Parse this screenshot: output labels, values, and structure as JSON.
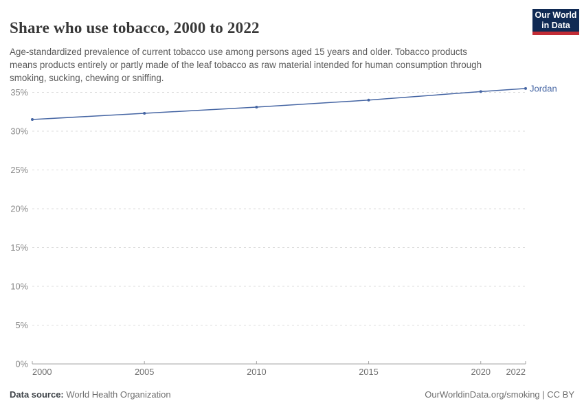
{
  "header": {
    "title": "Share who use tobacco, 2000 to 2022",
    "subtitle": "Age-standardized prevalence of current tobacco use among persons aged 15 years and older. Tobacco products means products entirely or partly made of the leaf tobacco as raw material intended for human consumption through smoking, sucking, chewing or sniffing.",
    "logo": {
      "line1": "Our World",
      "line2": "in Data",
      "bg_color": "#102a54",
      "accent_color": "#c22c35"
    }
  },
  "chart_data": {
    "type": "line",
    "title": "Share who use tobacco, 2000 to 2022",
    "x": [
      2000,
      2005,
      2010,
      2015,
      2020,
      2022
    ],
    "series": [
      {
        "name": "Jordan",
        "values": [
          31.5,
          32.3,
          33.1,
          34.0,
          35.1,
          35.5
        ],
        "color": "#4565a3"
      }
    ],
    "x_tick_labels": [
      "2000",
      "2005",
      "2010",
      "2015",
      "2020",
      "2022"
    ],
    "y_ticks": [
      0,
      5,
      10,
      15,
      20,
      25,
      30,
      35
    ],
    "y_tick_suffix": "%",
    "xlim": [
      2000,
      2022
    ],
    "ylim": [
      0,
      38.5
    ],
    "grid": "horizontal-dashed",
    "legend_position": "end-of-line",
    "entity_label": "Jordan"
  },
  "footer": {
    "datasource_label": "Data source:",
    "datasource_value": "World Health Organization",
    "license": "OurWorldinData.org/smoking | CC BY"
  },
  "colors": {
    "line": "#4565a3",
    "gridline": "#dcdcdc",
    "axis": "#a3a3a3",
    "y_tick_label": "#888888",
    "x_tick_label": "#6e6e6e"
  }
}
